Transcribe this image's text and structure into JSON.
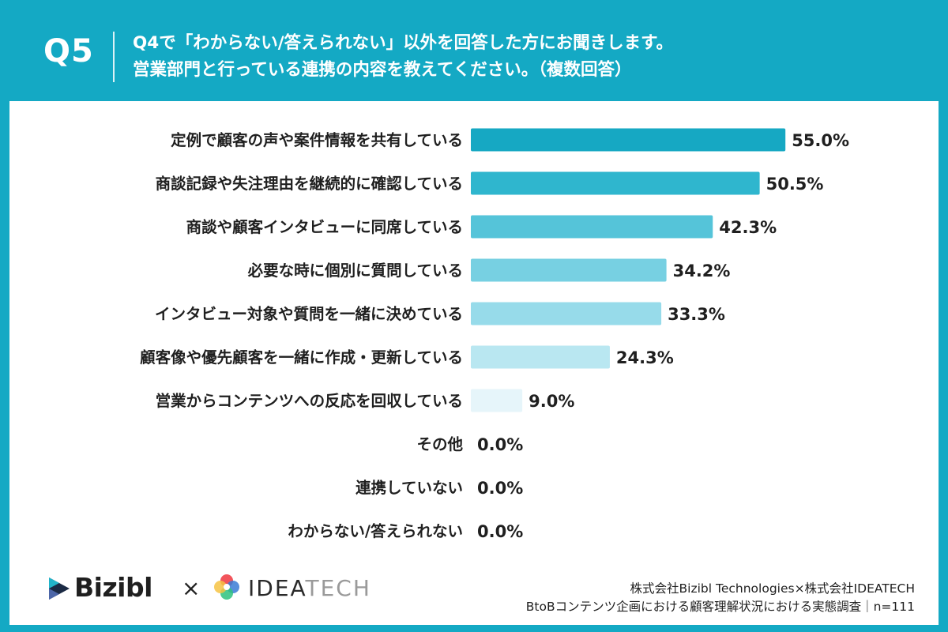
{
  "header": {
    "question_number": "Q5",
    "question_line1": "Q4で「わからない/答えられない」以外を回答した方にお聞きします。",
    "question_line2": "営業部門と行っている連携の内容を教えてください。（複数回答）"
  },
  "colors": {
    "frame": "#14a9c4",
    "bars": [
      "#16a8c3",
      "#2fb6ce",
      "#55c4d9",
      "#77d0e2",
      "#97dbea",
      "#b9e7f1",
      "#e6f5fa",
      "#ffffff",
      "#ffffff",
      "#ffffff"
    ],
    "label_text": "#1f1f1f"
  },
  "chart_data": {
    "type": "bar",
    "orientation": "horizontal",
    "categories": [
      "定例で顧客の声や案件情報を共有している",
      "商談記録や失注理由を継続的に確認している",
      "商談や顧客インタビューに同席している",
      "必要な時に個別に質問している",
      "インタビュー対象や質問を一緒に決めている",
      "顧客像や優先顧客を一緒に作成・更新している",
      "営業からコンテンツへの反応を回収している",
      "その他",
      "連携していない",
      "わからない/答えられない"
    ],
    "values": [
      55.0,
      50.5,
      42.3,
      34.2,
      33.3,
      24.3,
      9.0,
      0.0,
      0.0,
      0.0
    ],
    "value_labels": [
      "55.0%",
      "50.5%",
      "42.3%",
      "34.2%",
      "33.3%",
      "24.3%",
      "9.0%",
      "0.0%",
      "0.0%",
      "0.0%"
    ],
    "xlim": [
      0,
      100
    ],
    "grid": false,
    "legend": "none"
  },
  "footer": {
    "logo1": "Bizibl",
    "times": "×",
    "logo2_dark": "IDEA",
    "logo2_light": "TECH",
    "credit_line1": "株式会社Bizibl Technologies×株式会社IDEATECH",
    "credit_line2": "BtoBコンテンツ企画における顧客理解状況における実態調査｜n=111"
  }
}
